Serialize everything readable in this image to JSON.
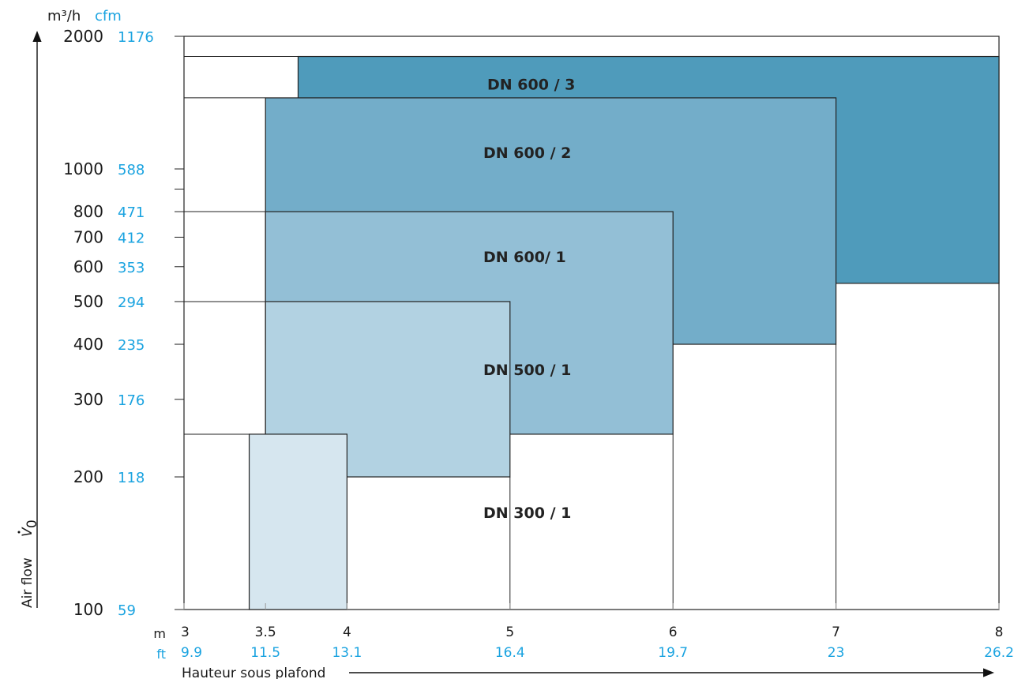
{
  "chart_data": {
    "type": "area",
    "y_axis": {
      "scale": "log",
      "range_m3h": [
        100,
        2000
      ],
      "unit_primary": "m³/h",
      "unit_secondary": "cfm",
      "ticks": [
        {
          "m3h": "2000",
          "cfm": "1176",
          "value": 2000
        },
        {
          "m3h": "1000",
          "cfm": "588",
          "value": 1000
        },
        {
          "m3h": "800",
          "cfm": "471",
          "value": 800
        },
        {
          "m3h": "700",
          "cfm": "412",
          "value": 700
        },
        {
          "m3h": "600",
          "cfm": "353",
          "value": 600
        },
        {
          "m3h": "500",
          "cfm": "294",
          "value": 500
        },
        {
          "m3h": "400",
          "cfm": "235",
          "value": 400
        },
        {
          "m3h": "300",
          "cfm": "176",
          "value": 300
        },
        {
          "m3h": "200",
          "cfm": "118",
          "value": 200
        },
        {
          "m3h": "100",
          "cfm": "59",
          "value": 100
        }
      ],
      "label": "Air flow",
      "symbol_base": "V",
      "symbol_sub": "0"
    },
    "x_axis": {
      "range_m": [
        3,
        8
      ],
      "unit_primary": "m",
      "unit_secondary": "ft",
      "ticks": [
        {
          "m": "3",
          "ft": "9.9",
          "value": 3
        },
        {
          "m": "3.5",
          "ft": "11.5",
          "value": 3.5
        },
        {
          "m": "4",
          "ft": "13.1",
          "value": 4
        },
        {
          "m": "5",
          "ft": "16.4",
          "value": 5
        },
        {
          "m": "6",
          "ft": "19.7",
          "value": 6
        },
        {
          "m": "7",
          "ft": "23",
          "value": 7
        },
        {
          "m": "8",
          "ft": "26.2",
          "value": 8
        }
      ],
      "label": "Hauteur sous plafond"
    },
    "zones": [
      {
        "name": "DN 600 / 3",
        "x_min": 3.7,
        "x_max": 8,
        "y_min": 550,
        "y_max": 1800,
        "color": "#4f9bbb"
      },
      {
        "name": "DN 600 / 2",
        "x_min": 3.5,
        "x_max": 7,
        "y_min": 400,
        "y_max": 1450,
        "color": "#73adc9"
      },
      {
        "name": "DN 600/ 1",
        "x_min": 3.5,
        "x_max": 6,
        "y_min": 250,
        "y_max": 800,
        "color": "#93bfd6"
      },
      {
        "name": "DN 500 / 1",
        "x_min": 3.5,
        "x_max": 5,
        "y_min": 200,
        "y_max": 500,
        "color": "#b2d2e2"
      },
      {
        "name": "DN 300 / 1",
        "x_min": 3.4,
        "x_max": 4,
        "y_min": 100,
        "y_max": 250,
        "color": "#d6e6ef"
      }
    ]
  }
}
